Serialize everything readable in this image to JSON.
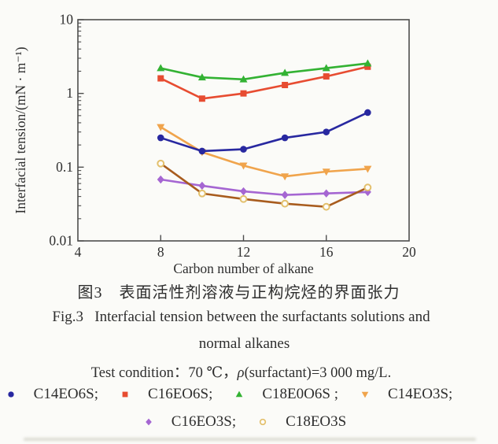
{
  "chart_data": {
    "type": "line",
    "x": [
      8,
      10,
      12,
      14,
      16,
      18
    ],
    "series": [
      {
        "name": "C14EO6S",
        "marker": "circle",
        "color": "#2828a0",
        "values": [
          0.25,
          0.165,
          0.175,
          0.25,
          0.3,
          0.55
        ]
      },
      {
        "name": "C16EO6S",
        "marker": "square",
        "color": "#e74c31",
        "values": [
          1.6,
          0.85,
          1.0,
          1.3,
          1.7,
          2.3
        ]
      },
      {
        "name": "C18E0O6S",
        "marker": "triangle-up",
        "color": "#33b233",
        "values": [
          2.2,
          1.65,
          1.55,
          1.9,
          2.2,
          2.55
        ]
      },
      {
        "name": "C14EO3S",
        "marker": "triangle-down",
        "color": "#f0a44c",
        "values": [
          0.35,
          0.16,
          0.105,
          0.075,
          0.087,
          0.095
        ]
      },
      {
        "name": "C16EO3S",
        "marker": "diamond",
        "color": "#a566d2",
        "values": [
          0.068,
          0.056,
          0.047,
          0.042,
          0.044,
          0.046
        ]
      },
      {
        "name": "C18EO3S",
        "marker": "open-circle",
        "color": "#a85c1e",
        "marker_color": "#e3c06d",
        "values": [
          0.112,
          0.044,
          0.037,
          0.032,
          0.029,
          0.053
        ]
      }
    ],
    "z_order": [
      4,
      5,
      3,
      0,
      1,
      2
    ],
    "xlabel": "Carbon number of alkane",
    "ylabel": "Interfacial tension/(mN · m⁻¹)",
    "xlim": [
      4,
      20
    ],
    "xticks": [
      4,
      8,
      12,
      16,
      20
    ],
    "ylim": [
      0.01,
      10
    ],
    "yscale": "log",
    "yticks": [
      10,
      1,
      0.1,
      0.01
    ],
    "grid": false,
    "frame_color": "#4d4d4d"
  },
  "caption": {
    "chinese": "图3　表面活性剂溶液与正构烷烃的界面张力",
    "english_line1": "Fig.3   Interfacial tension between the surfactants solutions and",
    "english_line2": "normal alkanes",
    "condition_prefix": "Test condition：70 ℃，",
    "condition_rho": "ρ",
    "condition_suffix": "(surfactant)=3 000 mg/L."
  },
  "legend": {
    "labels": [
      "C14EO6S;",
      "C16EO6S;",
      "C18E0O6S ;",
      "C14EO3S;",
      "C16EO3S;",
      "C18EO3S"
    ],
    "rows": [
      [
        0,
        1,
        2,
        3
      ],
      [
        4,
        5
      ]
    ]
  }
}
